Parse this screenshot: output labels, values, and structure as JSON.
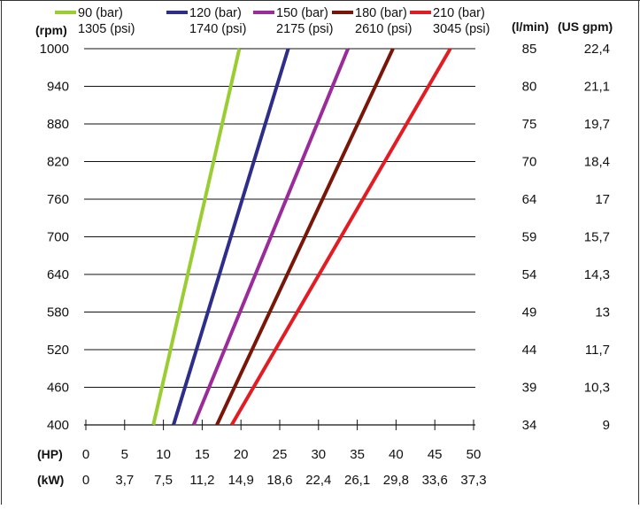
{
  "chart_data": {
    "type": "line",
    "units": {
      "y_left": "(rpm)",
      "y_right_flow": "(l/min)",
      "y_right_flow_us": "(US gpm)",
      "x_hp": "(HP)",
      "x_kw": "(kW)"
    },
    "y_ticks": [
      400,
      460,
      520,
      580,
      640,
      700,
      760,
      820,
      880,
      940,
      1000
    ],
    "ylim": [
      400,
      1000
    ],
    "flow_lpm": [
      "34",
      "39",
      "44",
      "49",
      "54",
      "59",
      "64",
      "70",
      "75",
      "80",
      "85"
    ],
    "flow_usgpm": [
      "9",
      "10,3",
      "11,7",
      "13",
      "14,3",
      "15,7",
      "17",
      "18,4",
      "19,7",
      "21,1",
      "22,4"
    ],
    "x_hp_ticks": [
      "0",
      "5",
      "10",
      "15",
      "20",
      "25",
      "30",
      "35",
      "40",
      "45",
      "50"
    ],
    "x_kw_ticks": [
      "0",
      "3,7",
      "7,5",
      "11,2",
      "14,9",
      "18,6",
      "22,4",
      "26,1",
      "29,8",
      "33,6",
      "37,3"
    ],
    "xlim": [
      0,
      50
    ],
    "grid": "horizontal",
    "legend_position": "top",
    "series": [
      {
        "name": "90 (bar)",
        "name2": "1305 (psi)",
        "color": "#9acd32",
        "x": [
          8.7,
          19.8
        ],
        "y": [
          400,
          1000
        ]
      },
      {
        "name": "120 (bar)",
        "name2": "1740 (psi)",
        "color": "#2e2e8a",
        "x": [
          11.3,
          26.1
        ],
        "y": [
          400,
          1000
        ]
      },
      {
        "name": "150 (bar)",
        "name2": "2175 (psi)",
        "color": "#9b2a9b",
        "x": [
          13.9,
          33.8
        ],
        "y": [
          400,
          1000
        ]
      },
      {
        "name": "180 (bar)",
        "name2": "2610 (psi)",
        "color": "#7a1608",
        "x": [
          16.9,
          39.6
        ],
        "y": [
          400,
          1000
        ]
      },
      {
        "name": "210 (bar)",
        "name2": "3045 (psi)",
        "color": "#e31c23",
        "x": [
          18.8,
          47.0
        ],
        "y": [
          400,
          1000
        ]
      }
    ]
  }
}
